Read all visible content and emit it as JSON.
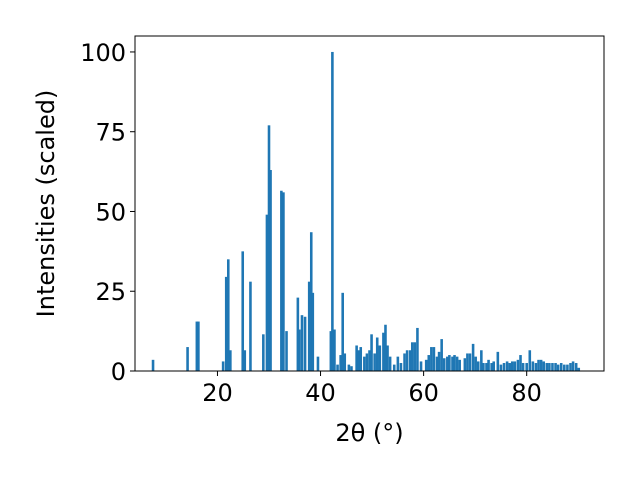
{
  "chart_data": {
    "type": "bar",
    "xlabel": "2θ (°)",
    "ylabel": "Intensities (scaled)",
    "xlim": [
      4,
      95
    ],
    "ylim": [
      0,
      105
    ],
    "x_ticks": [
      20,
      40,
      60,
      80
    ],
    "y_ticks": [
      0,
      25,
      50,
      75,
      100
    ],
    "grid": false,
    "bar_color": "#1f77b4",
    "bar_width": 0.5,
    "x": [
      7.5,
      14.2,
      16.0,
      16.3,
      21.1,
      21.7,
      22.1,
      22.5,
      24.9,
      25.3,
      26.4,
      28.9,
      29.6,
      30.0,
      30.3,
      32.4,
      32.8,
      33.4,
      35.6,
      35.9,
      36.4,
      37.0,
      37.8,
      38.2,
      38.5,
      39.5,
      42.0,
      42.3,
      42.7,
      43.3,
      43.9,
      44.3,
      44.7,
      45.5,
      46.0,
      47.0,
      47.4,
      47.8,
      48.5,
      49.0,
      49.5,
      49.9,
      50.5,
      51.0,
      51.5,
      52.2,
      52.6,
      53.0,
      53.5,
      54.3,
      55.0,
      55.6,
      56.3,
      56.8,
      57.4,
      57.8,
      58.3,
      58.8,
      59.5,
      60.5,
      61.0,
      61.5,
      62.0,
      62.6,
      63.0,
      63.5,
      64.0,
      64.6,
      65.0,
      65.6,
      66.0,
      66.5,
      67.0,
      68.0,
      68.5,
      69.0,
      69.6,
      70.1,
      70.6,
      71.2,
      71.6,
      72.2,
      72.6,
      73.2,
      73.6,
      74.4,
      75.0,
      75.6,
      76.2,
      76.7,
      77.2,
      77.7,
      78.3,
      78.8,
      79.3,
      80.0,
      80.6,
      81.2,
      81.8,
      82.3,
      82.8,
      83.3,
      83.9,
      84.4,
      85.0,
      85.6,
      86.1,
      86.7,
      87.3,
      87.9,
      88.5,
      89.0,
      89.6,
      90.1
    ],
    "values": [
      3.5,
      7.5,
      15.5,
      15.5,
      3.0,
      29.5,
      35.0,
      6.5,
      37.5,
      6.5,
      28.0,
      11.5,
      49.0,
      77.0,
      63.0,
      56.5,
      56.0,
      12.5,
      23.0,
      13.0,
      17.5,
      17.0,
      28.0,
      43.5,
      24.5,
      4.5,
      12.5,
      100.0,
      13.0,
      2.0,
      5.0,
      24.5,
      5.5,
      2.0,
      1.5,
      8.0,
      6.5,
      7.5,
      4.5,
      5.5,
      6.5,
      11.5,
      5.5,
      10.5,
      8.0,
      12.0,
      14.5,
      8.0,
      4.5,
      2.0,
      4.5,
      2.5,
      5.5,
      6.5,
      6.5,
      9.0,
      9.0,
      13.5,
      3.0,
      3.5,
      5.0,
      7.5,
      7.5,
      4.5,
      6.0,
      10.0,
      4.0,
      4.5,
      5.0,
      4.5,
      5.0,
      4.5,
      3.5,
      4.0,
      5.5,
      5.5,
      8.5,
      4.5,
      3.0,
      6.5,
      2.5,
      2.5,
      3.5,
      2.5,
      3.0,
      6.0,
      2.0,
      2.5,
      3.0,
      2.5,
      3.0,
      3.0,
      3.5,
      5.0,
      2.5,
      2.5,
      6.5,
      3.0,
      2.5,
      3.5,
      3.5,
      3.0,
      2.5,
      2.5,
      2.5,
      2.5,
      2.0,
      2.5,
      2.0,
      2.0,
      2.5,
      3.0,
      2.5,
      1.0
    ]
  }
}
